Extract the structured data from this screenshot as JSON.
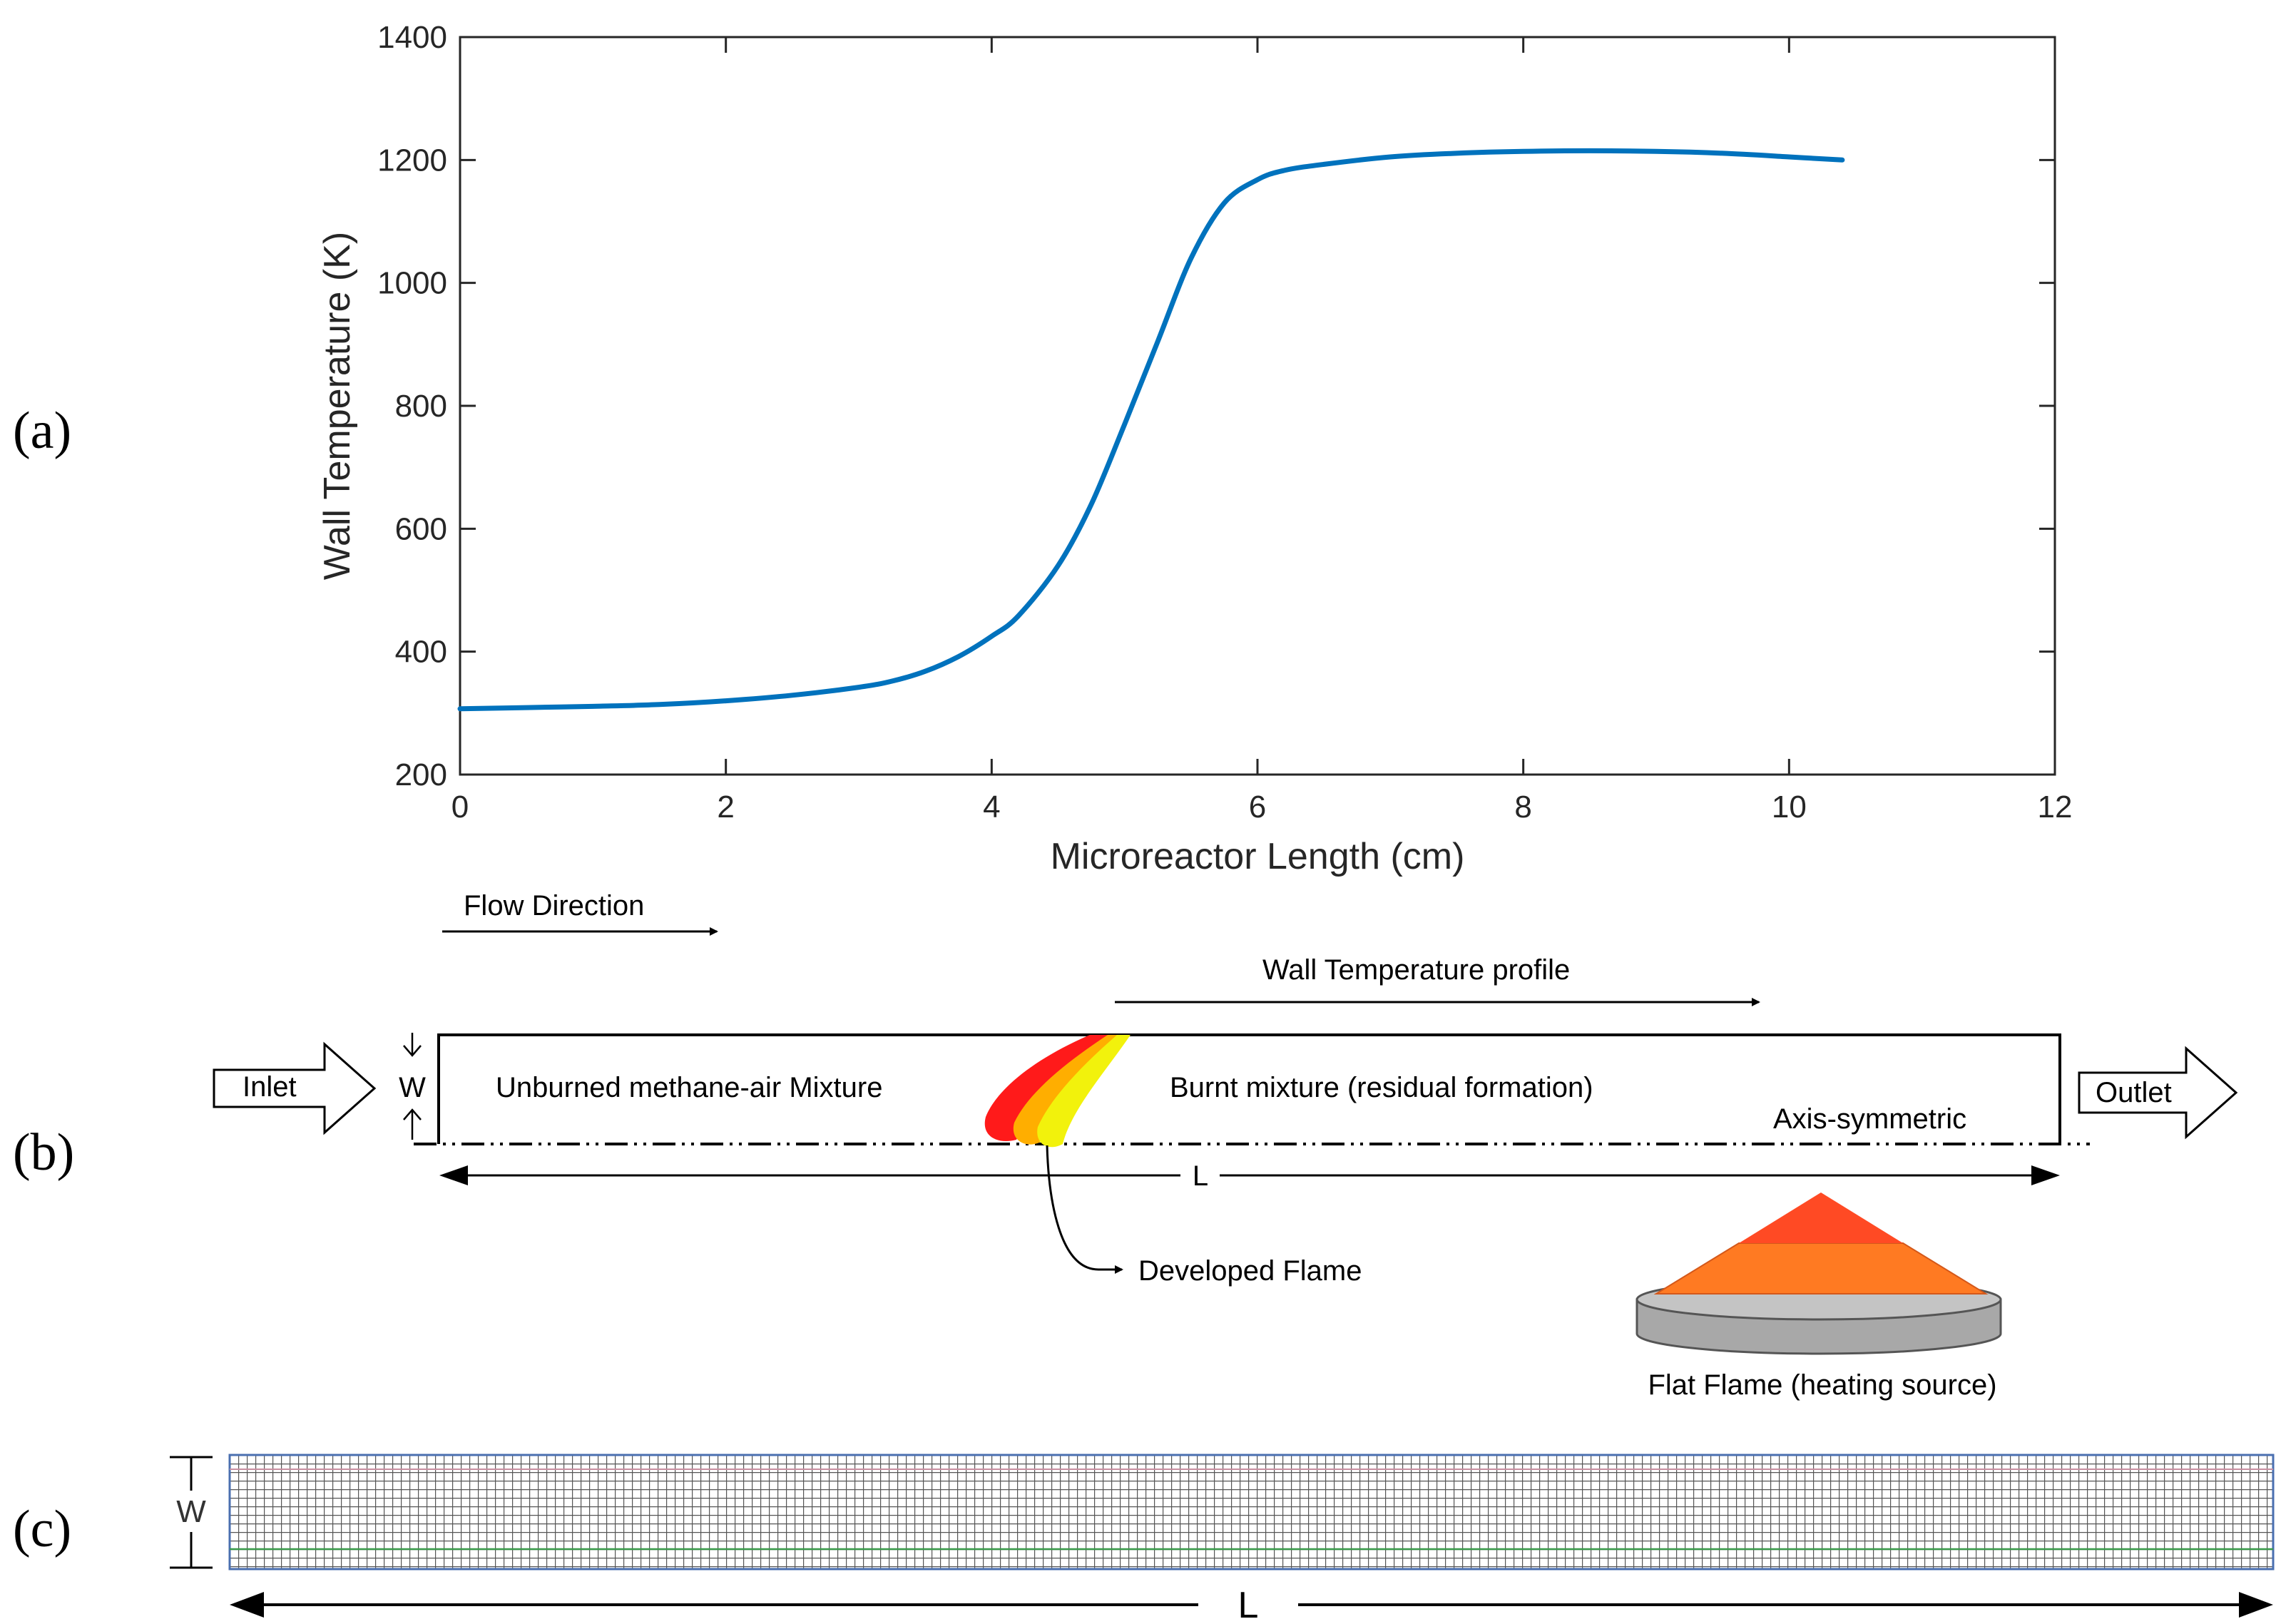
{
  "panel_labels": {
    "a": "(a)",
    "b": "(b)",
    "c": "(c)"
  },
  "chart_data": {
    "type": "line",
    "title": "",
    "xlabel": "Microreactor Length (cm)",
    "ylabel": "Wall Temperature (K)",
    "xlim": [
      0,
      12
    ],
    "ylim": [
      200,
      1400
    ],
    "xticks": [
      "0",
      "2",
      "4",
      "6",
      "8",
      "10",
      "12"
    ],
    "yticks": [
      "200",
      "400",
      "600",
      "800",
      "1000",
      "1200",
      "1400"
    ],
    "grid": false,
    "line_color": "#0072BD",
    "series": [
      {
        "name": "Wall Temperature",
        "x": [
          0,
          0.5,
          1.0,
          1.5,
          2.0,
          2.5,
          3.0,
          3.25,
          3.5,
          3.75,
          4.0,
          4.2,
          4.5,
          4.75,
          5.0,
          5.25,
          5.5,
          5.75,
          6.0,
          6.2,
          6.5,
          7.0,
          7.5,
          8.0,
          8.5,
          9.0,
          9.5,
          10.0,
          10.4
        ],
        "y": [
          307,
          309,
          311,
          314,
          320,
          329,
          342,
          352,
          368,
          392,
          425,
          458,
          540,
          640,
          770,
          905,
          1040,
          1130,
          1168,
          1183,
          1193,
          1205,
          1211,
          1214,
          1215,
          1214,
          1211,
          1205,
          1200
        ]
      }
    ]
  },
  "schematic": {
    "flow_direction": "Flow Direction",
    "wall_profile": "Wall Temperature profile",
    "inlet": "Inlet",
    "outlet": "Outlet",
    "w_label": "W",
    "unburned": "Unburned methane-air Mixture",
    "burnt": "Burnt mixture (residual formation)",
    "axis_symmetric": "Axis-symmetric",
    "l_label": "L",
    "developed_flame": "Developed Flame",
    "flat_flame": "Flat Flame (heating source)",
    "colors": {
      "flame_red": "#ff1a1a",
      "flame_orange": "#ffae00",
      "flame_yellow": "#f2f20c",
      "burner_top": "#ff4a24",
      "burner_mid": "#ff7a22",
      "burner_base": "#a8a8a8"
    }
  },
  "mesh": {
    "w_label": "W",
    "l_label": "L"
  }
}
